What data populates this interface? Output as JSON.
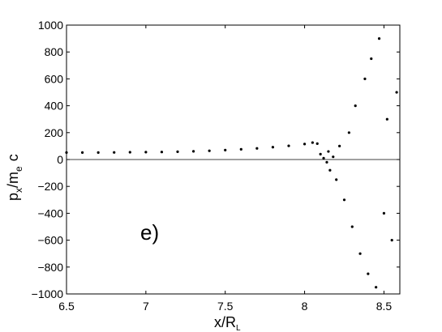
{
  "chart_data": {
    "type": "scatter",
    "panel_label": "e)",
    "xlabel": "x/R",
    "xlabel_subscript": "L",
    "ylabel": {
      "base": "p",
      "sub1": "x",
      "mid": "/m",
      "sub2": "e",
      "end": "c"
    },
    "xlim": [
      6.5,
      8.6
    ],
    "ylim": [
      -1000,
      1000
    ],
    "x_ticks": [
      6.5,
      7,
      7.5,
      8,
      8.5
    ],
    "x_tick_labels": [
      "6.5",
      "7",
      "7.5",
      "8",
      "8.5"
    ],
    "y_ticks": [
      -1000,
      -800,
      -600,
      -400,
      -200,
      0,
      200,
      400,
      600,
      800,
      1000
    ],
    "y_tick_labels": [
      "−1000",
      "−800",
      "−600",
      "−400",
      "−200",
      "0",
      "200",
      "400",
      "600",
      "800",
      "1000"
    ],
    "reference_line_y": 0,
    "grid": false,
    "colors": {
      "markers": "#000000",
      "reference_line": "#000000"
    },
    "series": [
      {
        "values": [
          [
            6.5,
            52
          ],
          [
            6.6,
            52
          ],
          [
            6.7,
            52
          ],
          [
            6.8,
            53
          ],
          [
            6.9,
            54
          ],
          [
            7.0,
            55
          ],
          [
            7.1,
            56
          ],
          [
            7.2,
            58
          ],
          [
            7.3,
            61
          ],
          [
            7.4,
            65
          ],
          [
            7.5,
            70
          ],
          [
            7.6,
            76
          ],
          [
            7.7,
            83
          ],
          [
            7.8,
            92
          ],
          [
            7.9,
            102
          ],
          [
            8.0,
            115
          ],
          [
            8.05,
            126
          ],
          [
            8.08,
            118
          ],
          [
            8.1,
            40
          ],
          [
            8.12,
            10
          ],
          [
            8.14,
            -20
          ],
          [
            8.15,
            60
          ],
          [
            8.16,
            -80
          ],
          [
            8.18,
            20
          ],
          [
            8.2,
            -150
          ],
          [
            8.22,
            100
          ],
          [
            8.25,
            -300
          ],
          [
            8.28,
            200
          ],
          [
            8.3,
            -500
          ],
          [
            8.32,
            400
          ],
          [
            8.35,
            -700
          ],
          [
            8.38,
            600
          ],
          [
            8.4,
            -850
          ],
          [
            8.42,
            750
          ],
          [
            8.45,
            -950
          ],
          [
            8.47,
            900
          ],
          [
            8.5,
            -400
          ],
          [
            8.52,
            300
          ],
          [
            8.55,
            -600
          ],
          [
            8.58,
            500
          ]
        ]
      }
    ]
  }
}
